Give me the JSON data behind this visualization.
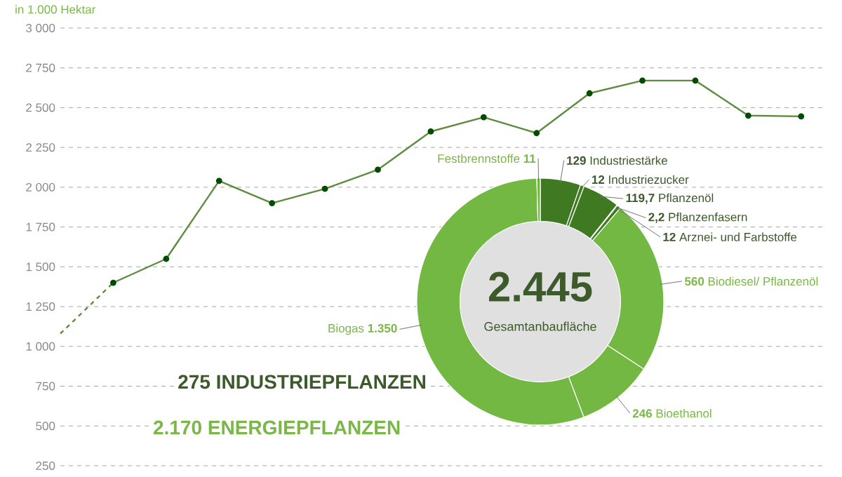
{
  "chart_data": [
    {
      "type": "line",
      "ylabel": "in 1.000 Hektar",
      "categories": [
        null,
        null,
        null,
        null,
        null,
        null,
        null,
        null,
        null,
        null,
        null,
        null,
        null,
        null,
        null
      ],
      "series": [
        {
          "color": "#5e8c3f",
          "line_style": "dashed",
          "marker": "none",
          "values": [
            1080,
            1400,
            null,
            null,
            null,
            null,
            null,
            null,
            null,
            null,
            null,
            null,
            null,
            null,
            null
          ]
        },
        {
          "color": "#5e8c3f",
          "line_style": "solid",
          "marker": "circle",
          "values": [
            null,
            1400,
            1550,
            2040,
            1900,
            1990,
            2110,
            2350,
            2440,
            2340,
            2590,
            2670,
            2670,
            2450,
            2445
          ]
        }
      ],
      "ylim": [
        250,
        3000
      ],
      "yticks": [
        250,
        500,
        750,
        {
          "value": 1000,
          "label": "1 000"
        },
        {
          "value": 1250,
          "label": "1 250"
        },
        {
          "value": 1500,
          "label": "1 500"
        },
        {
          "value": 1750,
          "label": "1 750"
        },
        {
          "value": 2000,
          "label": "2 000"
        },
        {
          "value": 2250,
          "label": "2 250"
        },
        {
          "value": 2500,
          "label": "2 500"
        },
        {
          "value": 2750,
          "label": "2 750"
        },
        {
          "value": 3000,
          "label": "3 000"
        }
      ],
      "grid": "y",
      "tick_labels": "y"
    },
    {
      "type": "donut",
      "categories": [
        "Industriestärke",
        "Industriezucker",
        "Pflanzenöl",
        "Pflanzenfasern",
        "Arznei- und Farbstoffe",
        "Biodiesel/ Pflanzenöl",
        "Bioethanol",
        "Biogas",
        "Festbrennstoffe"
      ],
      "values": [
        129,
        12,
        119.7,
        2.2,
        12,
        560,
        246,
        1350,
        11
      ],
      "value_labels": [
        "129",
        "12",
        "119,7",
        "2,2",
        "12",
        "560",
        "246",
        "1.350",
        "11"
      ],
      "colors": [
        "#3f7a22",
        "#3f7a22",
        "#3f7a22",
        "#3f7a22",
        "#3f7a22",
        "#72b843",
        "#72b843",
        "#72b843",
        "#72b843"
      ],
      "annotations": [
        "2.445",
        "Gesamtanbaufläche",
        "275 INDUSTRIEPFLANZEN",
        "2.170 ENERGIEPFLANZEN"
      ]
    }
  ]
}
